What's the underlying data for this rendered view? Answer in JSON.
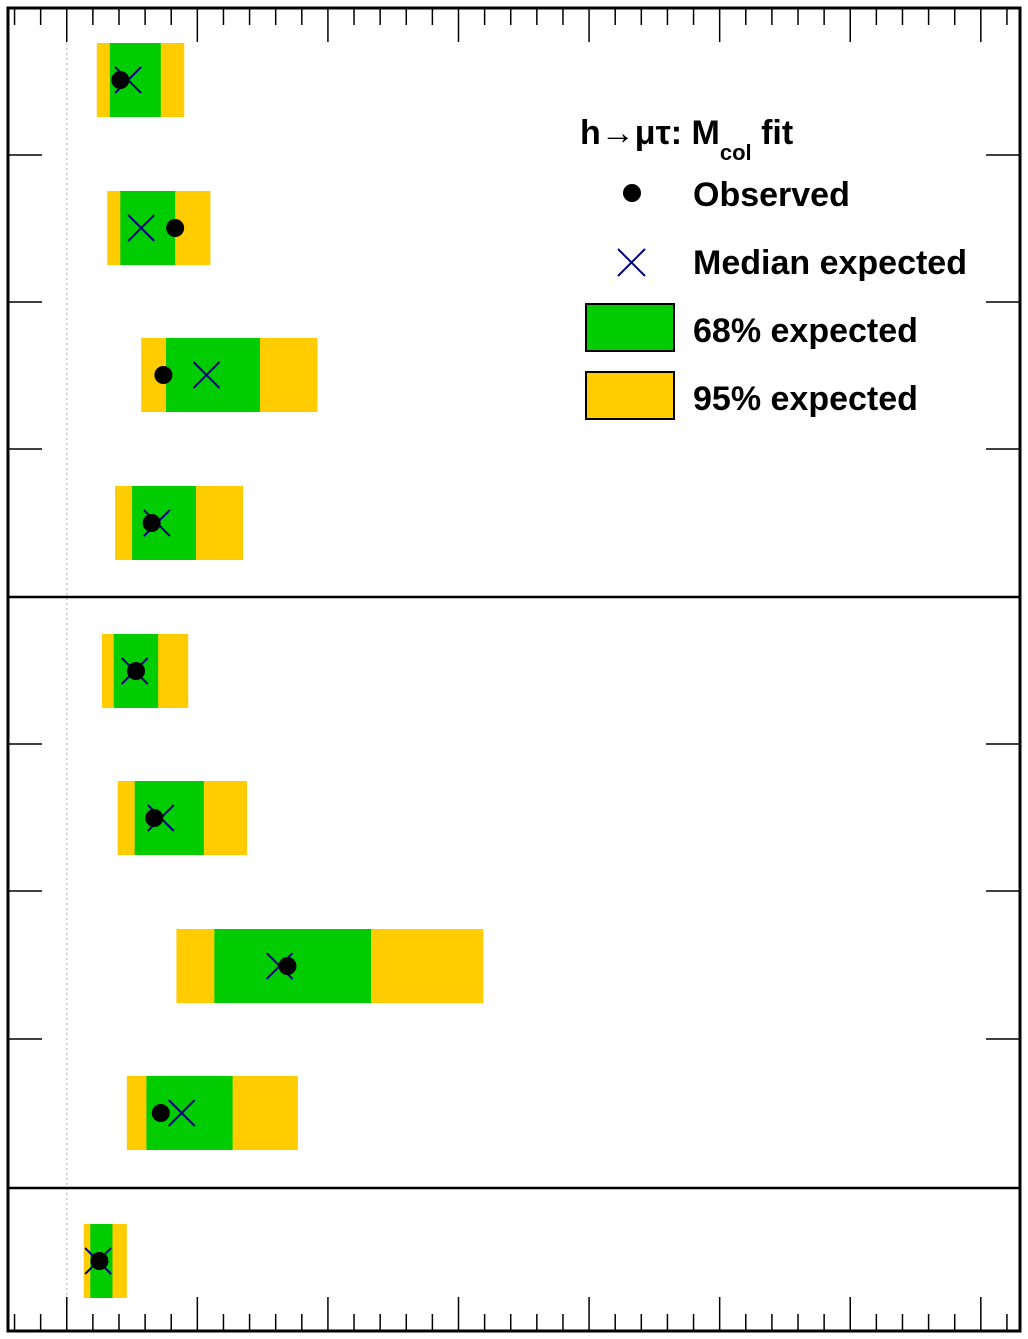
{
  "chart_data": {
    "type": "limit-summary",
    "title": "h→μτ: M",
    "title_subscript": "col",
    "title_suffix": " fit",
    "xlabel": "",
    "ylabel": "",
    "rows": [
      {
        "obs": 2.05,
        "exp": 2.35,
        "s1": [
          1.65,
          3.6
        ],
        "s2": [
          1.15,
          4.5
        ]
      },
      {
        "obs": 4.15,
        "exp": 2.85,
        "s1": [
          2.05,
          4.15
        ],
        "s2": [
          1.55,
          5.5
        ]
      },
      {
        "obs": 3.7,
        "exp": 5.35,
        "s1": [
          3.8,
          7.4
        ],
        "s2": [
          2.85,
          9.6
        ]
      },
      {
        "obs": 3.25,
        "exp": 3.45,
        "s1": [
          2.5,
          4.95
        ],
        "s2": [
          1.85,
          6.75
        ]
      },
      {
        "obs": 2.65,
        "exp": 2.6,
        "s1": [
          1.8,
          3.5
        ],
        "s2": [
          1.35,
          4.65
        ]
      },
      {
        "obs": 3.35,
        "exp": 3.6,
        "s1": [
          2.6,
          5.25
        ],
        "s2": [
          1.95,
          6.9
        ]
      },
      {
        "obs": 8.45,
        "exp": 8.15,
        "s1": [
          5.65,
          11.65
        ],
        "s2": [
          4.2,
          15.95
        ]
      },
      {
        "obs": 3.6,
        "exp": 4.4,
        "s1": [
          3.05,
          6.35
        ],
        "s2": [
          2.3,
          8.85
        ]
      },
      {
        "obs": 1.25,
        "exp": 1.2,
        "s1": [
          0.9,
          1.75
        ],
        "s2": [
          0.65,
          2.3
        ]
      }
    ],
    "xlim": [
      -2.25,
      36.5
    ],
    "x_major_ticks": [
      0,
      5,
      10,
      15,
      20,
      25,
      30,
      35
    ],
    "x_minor_ticks": [
      -2,
      -1,
      1,
      2,
      3,
      4,
      6,
      7,
      8,
      9,
      11,
      12,
      13,
      14,
      16,
      17,
      18,
      19,
      21,
      22,
      23,
      24,
      26,
      27,
      28,
      29,
      31,
      32,
      33,
      34,
      36
    ],
    "reference_line_x": 0,
    "group_separators_after_row": [
      3,
      7
    ],
    "legend": {
      "observed": "Observed",
      "median": "Median expected",
      "band68": "68% expected",
      "band95": "95% expected",
      "placement": "top-right"
    },
    "colors": {
      "band68": "#00cc00",
      "band95": "#ffcc00",
      "median": "#000080",
      "observed": "#000000",
      "frame": "#000000",
      "reference_line": "#c8c8c8"
    }
  }
}
